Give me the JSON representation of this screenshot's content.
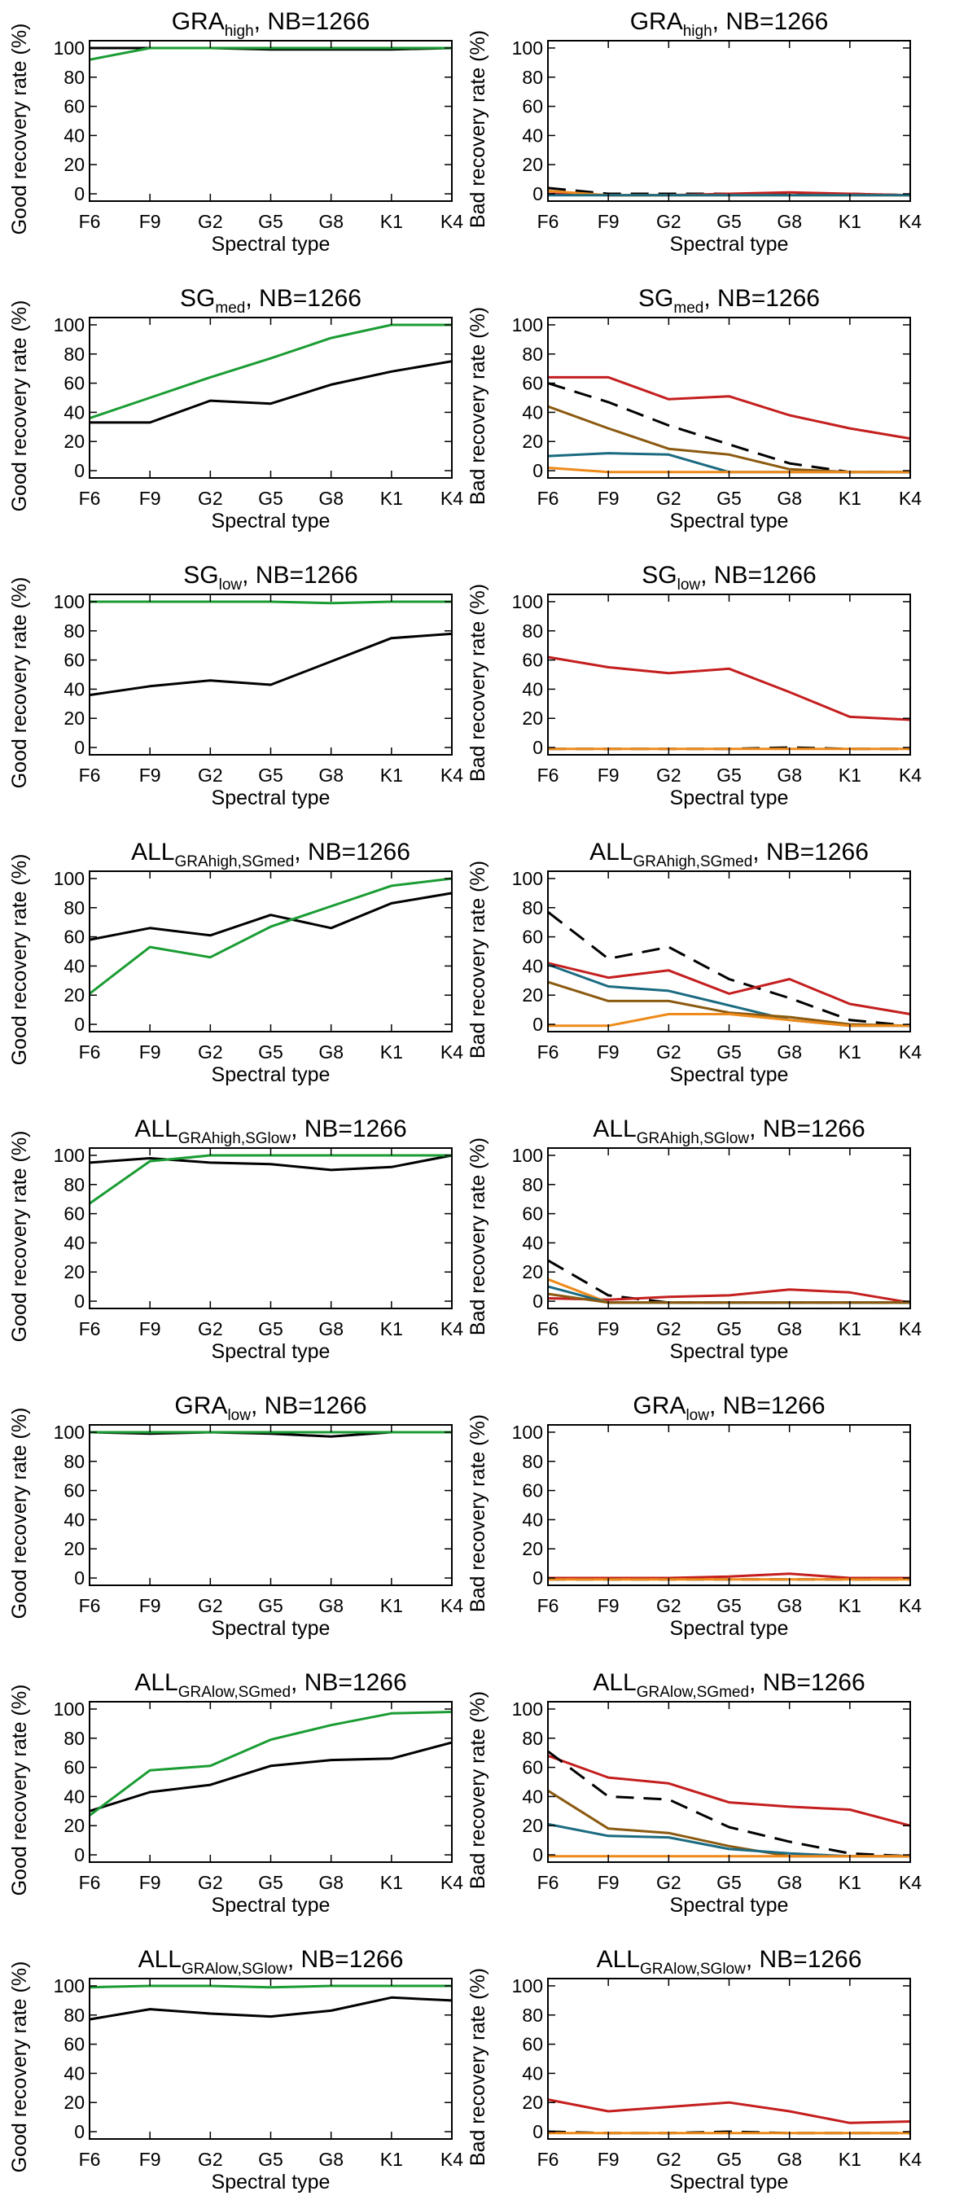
{
  "figure": {
    "categories": [
      "F6",
      "F9",
      "G2",
      "G5",
      "G8",
      "K1",
      "K4"
    ],
    "nb_label": ", NB=1266",
    "ylim": [
      -5,
      105
    ],
    "yticks": [
      0,
      20,
      40,
      60,
      80,
      100
    ],
    "colors": {
      "black": "#000000",
      "green": "#1a9c33",
      "red": "#c41e1e",
      "brown": "#8b5a10",
      "teal": "#1a6a80",
      "orange": "#ee8a1a"
    }
  },
  "chart_data": [
    {
      "type": "line",
      "panel": "good",
      "title_main": "GRA",
      "title_sub": "high",
      "title_suffix": ", NB=1266",
      "xlabel": "Spectral type",
      "ylabel": "Good recovery rate (%)",
      "categories": [
        "F6",
        "F9",
        "G2",
        "G5",
        "G8",
        "K1",
        "K4"
      ],
      "ylim": [
        -5,
        105
      ],
      "series": [
        {
          "name": "black",
          "color": "#000000",
          "dash": false,
          "values": [
            100,
            100,
            100,
            99,
            99,
            99,
            100
          ]
        },
        {
          "name": "green",
          "color": "#1a9c33",
          "dash": false,
          "values": [
            92,
            100,
            100,
            100,
            100,
            100,
            100
          ]
        }
      ]
    },
    {
      "type": "line",
      "panel": "bad",
      "title_main": "GRA",
      "title_sub": "high",
      "title_suffix": ", NB=1266",
      "xlabel": "Spectral type",
      "ylabel": "Bad recovery rate (%)",
      "categories": [
        "F6",
        "F9",
        "G2",
        "G5",
        "G8",
        "K1",
        "K4"
      ],
      "ylim": [
        -5,
        105
      ],
      "series": [
        {
          "name": "dashed",
          "color": "#000000",
          "dash": true,
          "values": [
            4,
            0,
            0,
            0,
            0,
            0,
            -1
          ]
        },
        {
          "name": "red",
          "color": "#c41e1e",
          "dash": false,
          "values": [
            0,
            -1,
            -1,
            0,
            1,
            0,
            -1
          ]
        },
        {
          "name": "orange",
          "color": "#ee8a1a",
          "dash": false,
          "values": [
            2,
            -1,
            -1,
            -1,
            -1,
            -1,
            -1
          ]
        },
        {
          "name": "teal",
          "color": "#1a6a80",
          "dash": false,
          "values": [
            -1,
            -1,
            -1,
            -1,
            -1,
            -1,
            -1
          ]
        }
      ]
    },
    {
      "type": "line",
      "panel": "good",
      "title_main": "SG",
      "title_sub": "med",
      "title_suffix": ", NB=1266",
      "xlabel": "Spectral type",
      "ylabel": "Good recovery rate (%)",
      "categories": [
        "F6",
        "F9",
        "G2",
        "G5",
        "G8",
        "K1",
        "K4"
      ],
      "ylim": [
        -5,
        105
      ],
      "series": [
        {
          "name": "black",
          "color": "#000000",
          "dash": false,
          "values": [
            33,
            33,
            48,
            46,
            59,
            68,
            75
          ]
        },
        {
          "name": "green",
          "color": "#1a9c33",
          "dash": false,
          "values": [
            36,
            50,
            64,
            77,
            91,
            100,
            100
          ]
        }
      ]
    },
    {
      "type": "line",
      "panel": "bad",
      "title_main": "SG",
      "title_sub": "med",
      "title_suffix": ", NB=1266",
      "xlabel": "Spectral type",
      "ylabel": "Bad recovery rate (%)",
      "categories": [
        "F6",
        "F9",
        "G2",
        "G5",
        "G8",
        "K1",
        "K4"
      ],
      "ylim": [
        -5,
        105
      ],
      "series": [
        {
          "name": "red",
          "color": "#c41e1e",
          "dash": false,
          "values": [
            64,
            64,
            49,
            51,
            38,
            29,
            22
          ]
        },
        {
          "name": "dashed",
          "color": "#000000",
          "dash": true,
          "values": [
            60,
            47,
            31,
            18,
            5,
            -1,
            -1
          ]
        },
        {
          "name": "brown",
          "color": "#8b5a10",
          "dash": false,
          "values": [
            44,
            29,
            15,
            11,
            1,
            -1,
            -1
          ]
        },
        {
          "name": "teal",
          "color": "#1a6a80",
          "dash": false,
          "values": [
            10,
            12,
            11,
            -1,
            -1,
            -1,
            -1
          ]
        },
        {
          "name": "orange",
          "color": "#ee8a1a",
          "dash": false,
          "values": [
            2,
            -1,
            -1,
            -1,
            -1,
            -1,
            -1
          ]
        }
      ]
    },
    {
      "type": "line",
      "panel": "good",
      "title_main": "SG",
      "title_sub": "low",
      "title_suffix": ", NB=1266",
      "xlabel": "Spectral type",
      "ylabel": "Good recovery rate (%)",
      "categories": [
        "F6",
        "F9",
        "G2",
        "G5",
        "G8",
        "K1",
        "K4"
      ],
      "ylim": [
        -5,
        105
      ],
      "series": [
        {
          "name": "black",
          "color": "#000000",
          "dash": false,
          "values": [
            36,
            42,
            46,
            43,
            59,
            75,
            78
          ]
        },
        {
          "name": "green",
          "color": "#1a9c33",
          "dash": false,
          "values": [
            100,
            100,
            100,
            100,
            99,
            100,
            100
          ]
        }
      ]
    },
    {
      "type": "line",
      "panel": "bad",
      "title_main": "SG",
      "title_sub": "low",
      "title_suffix": ", NB=1266",
      "xlabel": "Spectral type",
      "ylabel": "Bad recovery rate (%)",
      "categories": [
        "F6",
        "F9",
        "G2",
        "G5",
        "G8",
        "K1",
        "K4"
      ],
      "ylim": [
        -5,
        105
      ],
      "series": [
        {
          "name": "red",
          "color": "#c41e1e",
          "dash": false,
          "values": [
            62,
            55,
            51,
            54,
            38,
            21,
            19
          ]
        },
        {
          "name": "dashed",
          "color": "#000000",
          "dash": true,
          "values": [
            -1,
            -1,
            -1,
            -1,
            0,
            -1,
            -1
          ]
        },
        {
          "name": "orange",
          "color": "#ee8a1a",
          "dash": false,
          "values": [
            -1,
            -1,
            -1,
            -1,
            -1,
            -1,
            -1
          ]
        }
      ]
    },
    {
      "type": "line",
      "panel": "good",
      "title_main": "ALL",
      "title_sub": "GRAhigh,SGmed",
      "title_suffix": ", NB=1266",
      "xlabel": "Spectral type",
      "ylabel": "Good recovery rate (%)",
      "categories": [
        "F6",
        "F9",
        "G2",
        "G5",
        "G8",
        "K1",
        "K4"
      ],
      "ylim": [
        -5,
        105
      ],
      "series": [
        {
          "name": "black",
          "color": "#000000",
          "dash": false,
          "values": [
            58,
            66,
            61,
            75,
            66,
            83,
            90
          ]
        },
        {
          "name": "green",
          "color": "#1a9c33",
          "dash": false,
          "values": [
            21,
            53,
            46,
            67,
            81,
            95,
            100
          ]
        }
      ]
    },
    {
      "type": "line",
      "panel": "bad",
      "title_main": "ALL",
      "title_sub": "GRAhigh,SGmed",
      "title_suffix": ", NB=1266",
      "xlabel": "Spectral type",
      "ylabel": "Bad recovery rate (%)",
      "categories": [
        "F6",
        "F9",
        "G2",
        "G5",
        "G8",
        "K1",
        "K4"
      ],
      "ylim": [
        -5,
        105
      ],
      "series": [
        {
          "name": "dashed",
          "color": "#000000",
          "dash": true,
          "values": [
            77,
            45,
            53,
            31,
            18,
            3,
            -1
          ]
        },
        {
          "name": "red",
          "color": "#c41e1e",
          "dash": false,
          "values": [
            42,
            32,
            37,
            21,
            31,
            14,
            7
          ]
        },
        {
          "name": "teal",
          "color": "#1a6a80",
          "dash": false,
          "values": [
            41,
            26,
            23,
            13,
            3,
            -1,
            -1
          ]
        },
        {
          "name": "brown",
          "color": "#8b5a10",
          "dash": false,
          "values": [
            29,
            16,
            16,
            8,
            5,
            0,
            -1
          ]
        },
        {
          "name": "orange",
          "color": "#ee8a1a",
          "dash": false,
          "values": [
            -1,
            -1,
            7,
            7,
            3,
            -1,
            -1
          ]
        }
      ]
    },
    {
      "type": "line",
      "panel": "good",
      "title_main": "ALL",
      "title_sub": "GRAhigh,SGlow",
      "title_suffix": ", NB=1266",
      "xlabel": "Spectral type",
      "ylabel": "Good recovery rate (%)",
      "categories": [
        "F6",
        "F9",
        "G2",
        "G5",
        "G8",
        "K1",
        "K4"
      ],
      "ylim": [
        -5,
        105
      ],
      "series": [
        {
          "name": "black",
          "color": "#000000",
          "dash": false,
          "values": [
            95,
            98,
            95,
            94,
            90,
            92,
            100
          ]
        },
        {
          "name": "green",
          "color": "#1a9c33",
          "dash": false,
          "values": [
            67,
            96,
            100,
            100,
            100,
            100,
            100
          ]
        }
      ]
    },
    {
      "type": "line",
      "panel": "bad",
      "title_main": "ALL",
      "title_sub": "GRAhigh,SGlow",
      "title_suffix": ", NB=1266",
      "xlabel": "Spectral type",
      "ylabel": "Bad recovery rate (%)",
      "categories": [
        "F6",
        "F9",
        "G2",
        "G5",
        "G8",
        "K1",
        "K4"
      ],
      "ylim": [
        -5,
        105
      ],
      "series": [
        {
          "name": "dashed",
          "color": "#000000",
          "dash": true,
          "values": [
            28,
            4,
            -1,
            -1,
            -1,
            -1,
            -1
          ]
        },
        {
          "name": "red",
          "color": "#c41e1e",
          "dash": false,
          "values": [
            2,
            1,
            3,
            4,
            8,
            6,
            -1
          ]
        },
        {
          "name": "orange",
          "color": "#ee8a1a",
          "dash": false,
          "values": [
            15,
            -1,
            -1,
            -1,
            -1,
            -1,
            -1
          ]
        },
        {
          "name": "teal",
          "color": "#1a6a80",
          "dash": false,
          "values": [
            10,
            -1,
            -1,
            -1,
            -1,
            -1,
            -1
          ]
        },
        {
          "name": "brown",
          "color": "#8b5a10",
          "dash": false,
          "values": [
            5,
            -1,
            -1,
            -1,
            -1,
            -1,
            -1
          ]
        }
      ]
    },
    {
      "type": "line",
      "panel": "good",
      "title_main": "GRA",
      "title_sub": "low",
      "title_suffix": ", NB=1266",
      "xlabel": "Spectral type",
      "ylabel": "Good recovery rate (%)",
      "categories": [
        "F6",
        "F9",
        "G2",
        "G5",
        "G8",
        "K1",
        "K4"
      ],
      "ylim": [
        -5,
        105
      ],
      "series": [
        {
          "name": "black",
          "color": "#000000",
          "dash": false,
          "values": [
            100,
            99,
            100,
            99,
            97,
            100,
            100
          ]
        },
        {
          "name": "green",
          "color": "#1a9c33",
          "dash": false,
          "values": [
            100,
            100,
            100,
            100,
            100,
            100,
            100
          ]
        }
      ]
    },
    {
      "type": "line",
      "panel": "bad",
      "title_main": "GRA",
      "title_sub": "low",
      "title_suffix": ", NB=1266",
      "xlabel": "Spectral type",
      "ylabel": "Bad recovery rate (%)",
      "categories": [
        "F6",
        "F9",
        "G2",
        "G5",
        "G8",
        "K1",
        "K4"
      ],
      "ylim": [
        -5,
        105
      ],
      "series": [
        {
          "name": "red",
          "color": "#c41e1e",
          "dash": false,
          "values": [
            0,
            0,
            0,
            1,
            3,
            0,
            0
          ]
        },
        {
          "name": "dashed",
          "color": "#000000",
          "dash": true,
          "values": [
            -1,
            -1,
            -1,
            -1,
            -1,
            -1,
            -1
          ]
        },
        {
          "name": "orange",
          "color": "#ee8a1a",
          "dash": false,
          "values": [
            -1,
            -1,
            -1,
            -1,
            -1,
            -1,
            -1
          ]
        }
      ]
    },
    {
      "type": "line",
      "panel": "good",
      "title_main": "ALL",
      "title_sub": "GRAlow,SGmed",
      "title_suffix": ", NB=1266",
      "xlabel": "Spectral type",
      "ylabel": "Good recovery rate (%)",
      "categories": [
        "F6",
        "F9",
        "G2",
        "G5",
        "G8",
        "K1",
        "K4"
      ],
      "ylim": [
        -5,
        105
      ],
      "series": [
        {
          "name": "black",
          "color": "#000000",
          "dash": false,
          "values": [
            30,
            43,
            48,
            61,
            65,
            66,
            77
          ]
        },
        {
          "name": "green",
          "color": "#1a9c33",
          "dash": false,
          "values": [
            27,
            58,
            61,
            79,
            89,
            97,
            98
          ]
        }
      ]
    },
    {
      "type": "line",
      "panel": "bad",
      "title_main": "ALL",
      "title_sub": "GRAlow,SGmed",
      "title_suffix": ", NB=1266",
      "xlabel": "Spectral type",
      "ylabel": "Bad recovery rate (%)",
      "categories": [
        "F6",
        "F9",
        "G2",
        "G5",
        "G8",
        "K1",
        "K4"
      ],
      "ylim": [
        -5,
        105
      ],
      "series": [
        {
          "name": "red",
          "color": "#c41e1e",
          "dash": false,
          "values": [
            68,
            53,
            49,
            36,
            33,
            31,
            20
          ]
        },
        {
          "name": "dashed",
          "color": "#000000",
          "dash": true,
          "values": [
            71,
            40,
            38,
            19,
            9,
            1,
            -1
          ]
        },
        {
          "name": "brown",
          "color": "#8b5a10",
          "dash": false,
          "values": [
            44,
            18,
            15,
            6,
            -1,
            -1,
            -1
          ]
        },
        {
          "name": "teal",
          "color": "#1a6a80",
          "dash": false,
          "values": [
            21,
            13,
            12,
            4,
            1,
            -1,
            -1
          ]
        },
        {
          "name": "orange",
          "color": "#ee8a1a",
          "dash": false,
          "values": [
            -1,
            -1,
            -1,
            -1,
            -1,
            -1,
            -1
          ]
        }
      ]
    },
    {
      "type": "line",
      "panel": "good",
      "title_main": "ALL",
      "title_sub": "GRAlow,SGlow",
      "title_suffix": ", NB=1266",
      "xlabel": "Spectral type",
      "ylabel": "Good recovery rate (%)",
      "categories": [
        "F6",
        "F9",
        "G2",
        "G5",
        "G8",
        "K1",
        "K4"
      ],
      "ylim": [
        -5,
        105
      ],
      "series": [
        {
          "name": "black",
          "color": "#000000",
          "dash": false,
          "values": [
            77,
            84,
            81,
            79,
            83,
            92,
            90
          ]
        },
        {
          "name": "green",
          "color": "#1a9c33",
          "dash": false,
          "values": [
            99,
            100,
            100,
            99,
            100,
            100,
            100
          ]
        }
      ]
    },
    {
      "type": "line",
      "panel": "bad",
      "title_main": "ALL",
      "title_sub": "GRAlow,SGlow",
      "title_suffix": ", NB=1266",
      "xlabel": "Spectral type",
      "ylabel": "Bad recovery rate (%)",
      "categories": [
        "F6",
        "F9",
        "G2",
        "G5",
        "G8",
        "K1",
        "K4"
      ],
      "ylim": [
        -5,
        105
      ],
      "series": [
        {
          "name": "red",
          "color": "#c41e1e",
          "dash": false,
          "values": [
            22,
            14,
            17,
            20,
            14,
            6,
            7
          ]
        },
        {
          "name": "dashed",
          "color": "#000000",
          "dash": true,
          "values": [
            0,
            -1,
            -1,
            0,
            -1,
            -1,
            -1
          ]
        },
        {
          "name": "orange",
          "color": "#ee8a1a",
          "dash": false,
          "values": [
            -1,
            -1,
            -1,
            -1,
            -1,
            -1,
            -1
          ]
        }
      ]
    }
  ]
}
